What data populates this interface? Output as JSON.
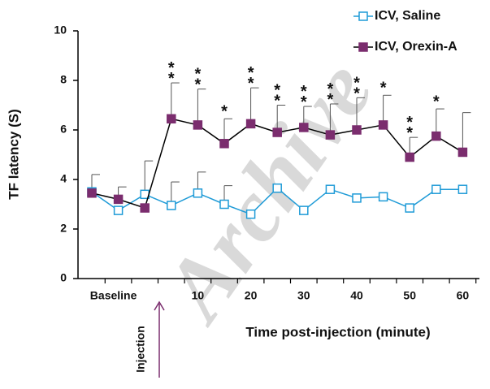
{
  "chart_data": {
    "type": "line",
    "y_label": "TF latency (S)",
    "x_label": "Time post-injection (minute)",
    "injection_label": "Injection",
    "watermark": "Archive",
    "categories": [
      null,
      "Baseline",
      null,
      null,
      "10",
      null,
      "20",
      null,
      "30",
      null,
      "40",
      null,
      "50",
      null,
      "60"
    ],
    "series": [
      {
        "name": "ICV, Saline",
        "color": "#1f9bd7",
        "marker": "open-square",
        "values": [
          3.5,
          2.75,
          3.4,
          2.95,
          3.45,
          3.0,
          2.6,
          3.65,
          2.75,
          3.6,
          3.25,
          3.3,
          2.85,
          3.6,
          3.6
        ],
        "errors": [
          0.7,
          null,
          1.35,
          0.95,
          0.85,
          0.75,
          null,
          null,
          null,
          null,
          null,
          null,
          null,
          null,
          null
        ]
      },
      {
        "name": "ICV, Orexin-A",
        "color": "#7b2d6e",
        "marker": "filled-square",
        "values": [
          3.45,
          3.2,
          2.85,
          6.45,
          6.2,
          5.45,
          6.25,
          5.9,
          6.1,
          5.8,
          6.0,
          6.2,
          4.9,
          5.75,
          5.1
        ],
        "errors": [
          null,
          0.5,
          null,
          1.45,
          1.45,
          1.0,
          1.45,
          1.1,
          0.85,
          1.25,
          1.3,
          1.2,
          0.8,
          1.1,
          1.6
        ],
        "significance": [
          null,
          null,
          null,
          "**",
          "**",
          "*",
          "**",
          "**",
          "**",
          "**",
          "**",
          "*",
          "**",
          "*",
          null
        ]
      }
    ],
    "ylim": [
      0,
      10
    ],
    "yticks": [
      0,
      2,
      4,
      6,
      8,
      10
    ]
  }
}
